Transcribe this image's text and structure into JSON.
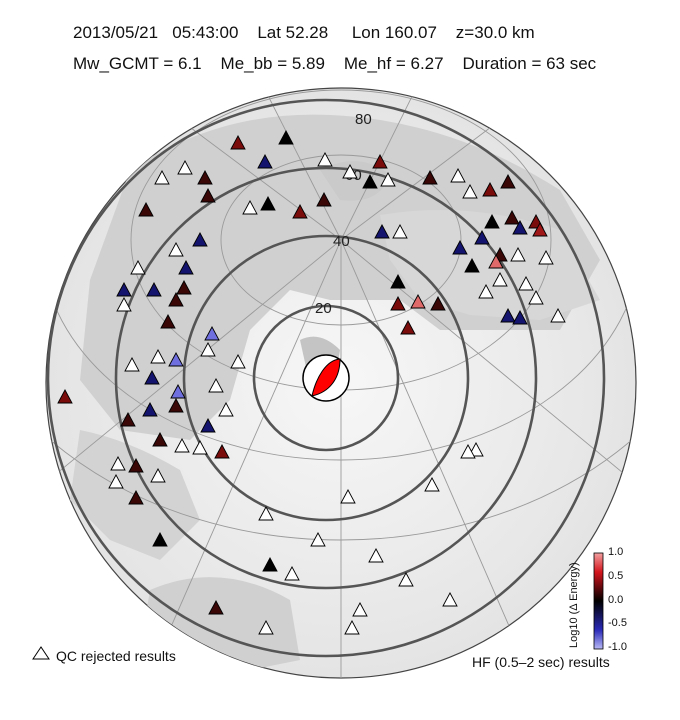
{
  "header": {
    "line1": "2013/05/21   05:43:00    Lat 52.28     Lon 160.07    z=30.0 km",
    "line2": "Mw_GCMT = 6.1    Me_bb = 5.89    Me_hf = 6.27    Duration = 63 sec"
  },
  "rings": {
    "labels": [
      "20",
      "40",
      "60",
      "80"
    ]
  },
  "legend": {
    "qc_label": "QC rejected results",
    "hf_label": "HF (0.5–2 sec) results",
    "colorbar_title": "Log10 (Δ Energy)",
    "colorbar_ticks": [
      "1.0",
      "0.5",
      "0.0",
      "-0.5",
      "-1.0"
    ],
    "colorbar_colors": [
      "#d4141c",
      "#6b0d0d",
      "#000000",
      "#23238a",
      "#8c8cf0"
    ]
  },
  "beachball": {
    "compression_color": "#ff0000",
    "dilatation_color": "#ffffff"
  }
}
